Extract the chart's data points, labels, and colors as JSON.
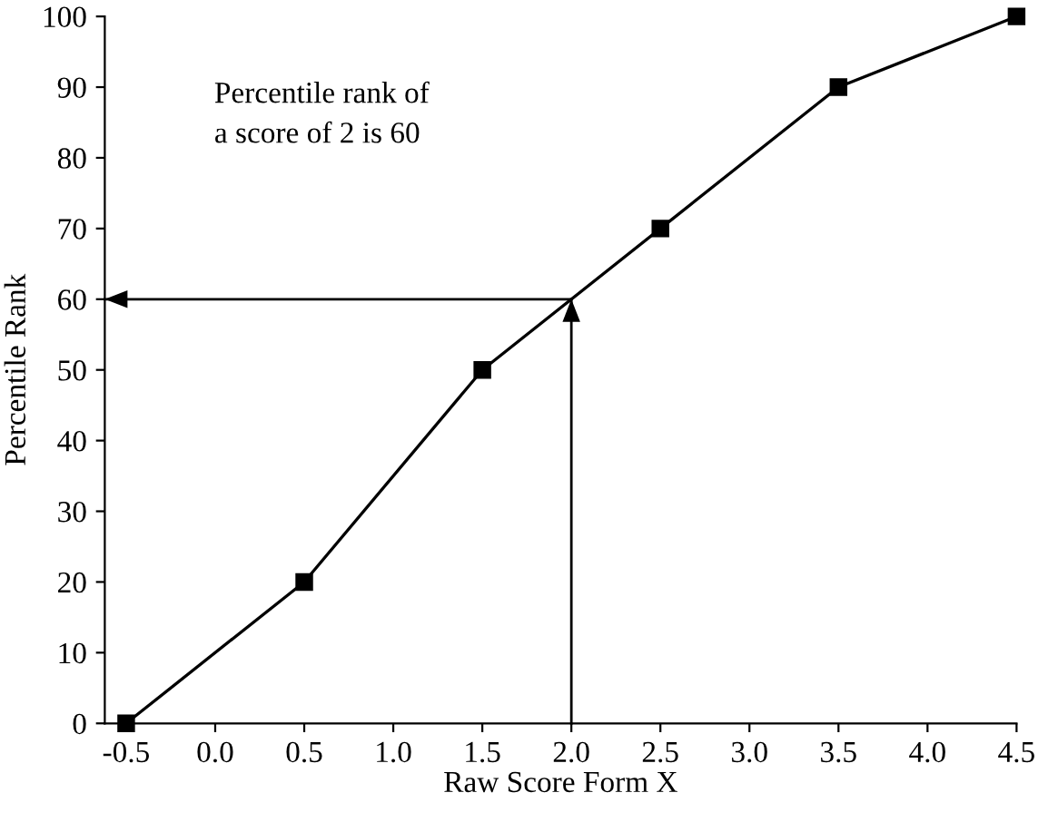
{
  "chart_data": {
    "type": "line",
    "xlabel": "Raw Score Form X",
    "ylabel": "Percentile Rank",
    "x": [
      -0.5,
      0.5,
      1.5,
      2.5,
      3.5,
      4.5
    ],
    "series": [
      {
        "color": "#000000",
        "values": [
          0,
          20,
          50,
          70,
          90,
          100
        ]
      }
    ],
    "marker": "square",
    "line_style": "solid",
    "grid": false,
    "legend": false,
    "xlim": [
      -0.62,
      4.5
    ],
    "ylim": [
      0,
      100
    ],
    "xticks": [
      {
        "value": -0.5,
        "label": "-0.5"
      },
      {
        "value": 0,
        "label": "0.0"
      },
      {
        "value": 0.5,
        "label": "0.5"
      },
      {
        "value": 1,
        "label": "1.0"
      },
      {
        "value": 1.5,
        "label": "1.5"
      },
      {
        "value": 2,
        "label": "2.0"
      },
      {
        "value": 2.5,
        "label": "2.5"
      },
      {
        "value": 3,
        "label": "3.0"
      },
      {
        "value": 3.5,
        "label": "3.5"
      },
      {
        "value": 4,
        "label": "4.0"
      },
      {
        "value": 4.5,
        "label": "4.5"
      }
    ],
    "yticks": [
      0,
      10,
      20,
      30,
      40,
      50,
      60,
      70,
      80,
      90,
      100
    ],
    "ref_lines": [
      {
        "axis": "x",
        "value": 2
      },
      {
        "axis": "y",
        "value": 60
      }
    ],
    "annotations": [
      "Percentile rank of\na score of 2 is 60"
    ]
  }
}
